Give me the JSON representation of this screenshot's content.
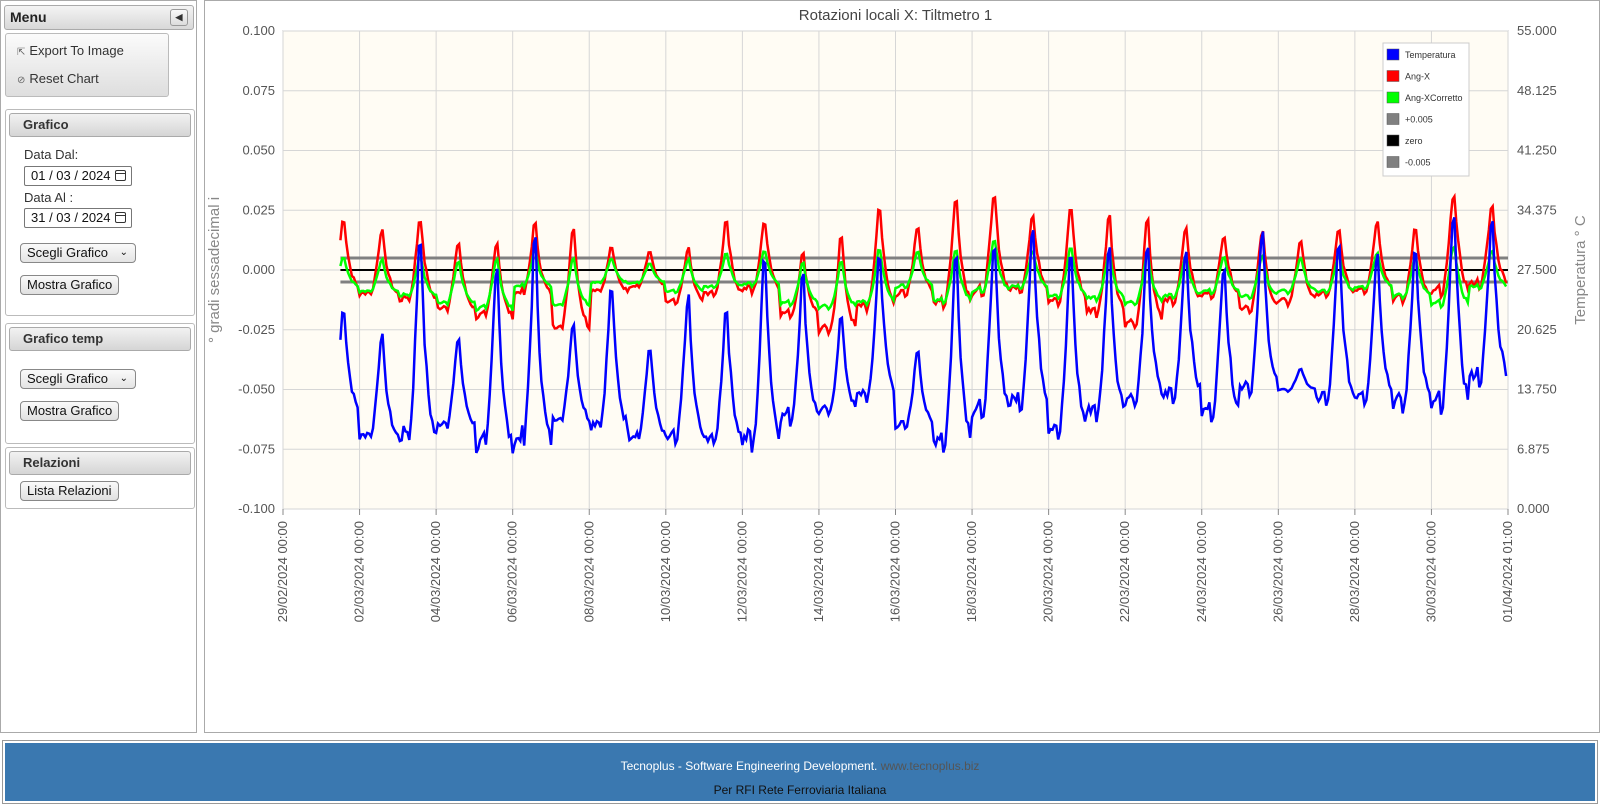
{
  "menu": {
    "title": "Menu",
    "actions": [
      {
        "label": "Export To Image",
        "icon": "external-link-icon"
      },
      {
        "label": "Reset Chart",
        "icon": "reset-icon"
      }
    ]
  },
  "grafico": {
    "title": "Grafico",
    "date_from_label": "Data Dal:",
    "date_from": "01 / 03 / 2024",
    "date_to_label": "Data Al :",
    "date_to": "31 / 03 / 2024",
    "select": "Scegli Grafico",
    "button": "Mostra Grafico"
  },
  "grafico_temp": {
    "title": "Grafico temp",
    "select": "Scegli Grafico",
    "button": "Mostra Grafico"
  },
  "relazioni": {
    "title": "Relazioni",
    "button": "Lista Relazioni"
  },
  "footer": {
    "line1": "Tecnoplus - Software Engineering Development.",
    "link": "www.tecnoplus.biz",
    "line2": "Per RFI Rete Ferroviaria Italiana"
  },
  "chart_data": {
    "type": "line",
    "title": "Rotazioni locali X: Tiltmetro 1",
    "ylabel": "° gradi sessadecimal i",
    "y2label": "Temperatura ° C",
    "ylim": [
      -0.1,
      0.1
    ],
    "y2lim": [
      0,
      55
    ],
    "y_ticks": [
      "0.100",
      "0.075",
      "0.050",
      "0.025",
      "0.000",
      "-0.025",
      "-0.050",
      "-0.075",
      "-0.100"
    ],
    "y2_ticks": [
      "55.000",
      "48.125",
      "41.250",
      "34.375",
      "27.500",
      "20.625",
      "13.750",
      "6.875",
      "0.000"
    ],
    "x_ticks": [
      "29/02/2024 00:00",
      "02/03/2024 00:00",
      "04/03/2024 00:00",
      "06/03/2024 00:00",
      "08/03/2024 00:00",
      "10/03/2024 00:00",
      "12/03/2024 00:00",
      "14/03/2024 00:00",
      "16/03/2024 00:00",
      "18/03/2024 00:00",
      "20/03/2024 00:00",
      "22/03/2024 00:00",
      "24/03/2024 00:00",
      "26/03/2024 00:00",
      "28/03/2024 00:00",
      "30/03/2024 00:00",
      "01/04/2024 01:00"
    ],
    "grid": true,
    "legend_position": "top-right",
    "colors": {
      "temperatura": "#0000ff",
      "ang_x": "#ff0000",
      "ang_x_corretto": "#00ff00",
      "plus": "#808080",
      "zero": "#000000",
      "minus": "#808080"
    },
    "series": [
      {
        "name": "Temperatura",
        "axis": "right",
        "daily_min": [
          10.5,
          7.5,
          6.5,
          9.0,
          5.5,
          6.0,
          9.5,
          8.5,
          7.5,
          7.0,
          7.0,
          6.5,
          9.5,
          10.5,
          12.0,
          9.0,
          6.5,
          10.0,
          11.0,
          8.0,
          10.0,
          11.5,
          12.0,
          10.0,
          13.0,
          13.5,
          11.5,
          12.0,
          11.0,
          10.5,
          14.0
        ],
        "daily_max": [
          24.5,
          21.5,
          34.5,
          21.0,
          31.0,
          34.0,
          23.0,
          27.5,
          20.0,
          26.5,
          25.0,
          32.0,
          29.0,
          23.5,
          31.5,
          19.5,
          32.0,
          32.5,
          35.0,
          32.0,
          32.5,
          32.0,
          32.0,
          30.5,
          34.0,
          16.5,
          32.5,
          31.5,
          32.5,
          37.5,
          35.5
        ]
      },
      {
        "name": "Ang-X",
        "axis": "left",
        "daily_min": [
          -0.01,
          -0.012,
          -0.015,
          -0.018,
          -0.022,
          -0.012,
          -0.027,
          -0.01,
          -0.008,
          -0.015,
          -0.012,
          -0.01,
          -0.02,
          -0.028,
          -0.018,
          -0.012,
          -0.016,
          -0.012,
          -0.01,
          -0.015,
          -0.02,
          -0.025,
          -0.015,
          -0.012,
          -0.018,
          -0.015,
          -0.012,
          -0.01,
          -0.014,
          -0.012,
          -0.008
        ],
        "daily_max": [
          0.025,
          0.02,
          0.026,
          0.015,
          0.016,
          0.023,
          0.024,
          0.012,
          0.01,
          0.012,
          0.025,
          0.024,
          0.01,
          0.019,
          0.032,
          0.022,
          0.035,
          0.036,
          0.027,
          0.031,
          0.028,
          0.026,
          0.022,
          0.018,
          0.02,
          0.016,
          0.02,
          0.024,
          0.022,
          0.038,
          0.031
        ]
      },
      {
        "name": "Ang-XCorretto",
        "axis": "left",
        "daily_min": [
          -0.008,
          -0.01,
          -0.012,
          -0.015,
          -0.018,
          -0.008,
          -0.016,
          -0.006,
          -0.006,
          -0.01,
          -0.008,
          -0.007,
          -0.015,
          -0.017,
          -0.015,
          -0.008,
          -0.014,
          -0.01,
          -0.008,
          -0.012,
          -0.013,
          -0.015,
          -0.012,
          -0.01,
          -0.012,
          -0.01,
          -0.01,
          -0.008,
          -0.012,
          -0.016,
          -0.008
        ],
        "daily_max": [
          0.007,
          0.006,
          0.008,
          0.006,
          0.008,
          0.01,
          0.008,
          0.006,
          0.004,
          0.006,
          0.009,
          0.01,
          0.005,
          0.006,
          0.012,
          0.01,
          0.011,
          0.015,
          0.01,
          0.012,
          0.01,
          0.009,
          0.008,
          0.008,
          0.008,
          0.007,
          0.008,
          0.009,
          0.008,
          0.014,
          0.01
        ]
      },
      {
        "name": "+0.005",
        "axis": "left",
        "constant": 0.005
      },
      {
        "name": "zero",
        "axis": "left",
        "constant": 0.0
      },
      {
        "name": "-0.005",
        "axis": "left",
        "constant": -0.005
      }
    ]
  }
}
